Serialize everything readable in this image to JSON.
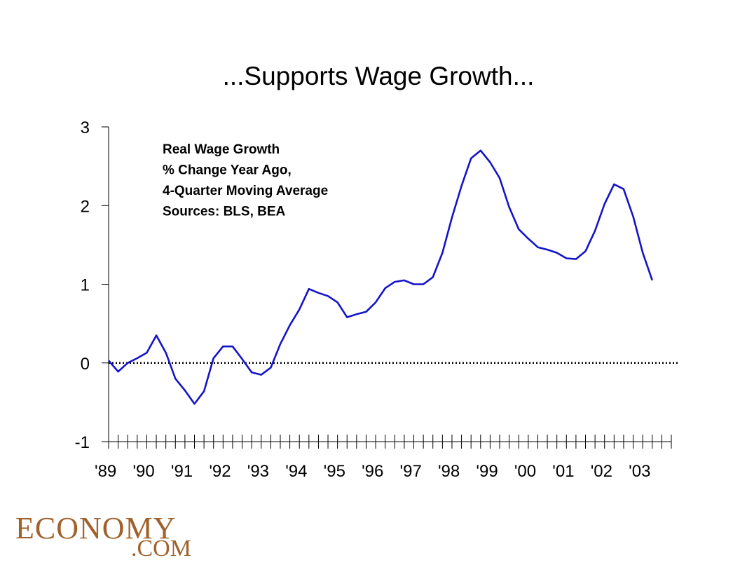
{
  "chart_data": {
    "type": "line",
    "title": "...Supports Wage Growth...",
    "xlabel": "",
    "ylabel": "",
    "ylim": [
      -1,
      3
    ],
    "yticks": [
      3,
      2,
      1,
      0,
      -1
    ],
    "ytick_labels": [
      "3",
      "2",
      "1",
      "0",
      "-1"
    ],
    "xlim": [
      1989,
      2003.75
    ],
    "xtick_labels": [
      "'89",
      "'90",
      "'91",
      "'92",
      "'93",
      "'94",
      "'95",
      "'96",
      "'97",
      "'98",
      "'99",
      "'00",
      "'01",
      "'02",
      "'03"
    ],
    "reference_line": {
      "y": 0,
      "style": "dotted"
    },
    "annotation": [
      "Real Wage Growth",
      "% Change Year Ago,",
      "4-Quarter Moving Average",
      "Sources: BLS, BEA"
    ],
    "series": [
      {
        "color": "#1414c8",
        "x": [
          1989.0,
          1989.25,
          1989.5,
          1989.75,
          1990.0,
          1990.25,
          1990.5,
          1990.75,
          1991.0,
          1991.25,
          1991.5,
          1991.75,
          1992.0,
          1992.25,
          1992.5,
          1992.75,
          1993.0,
          1993.25,
          1993.5,
          1993.75,
          1994.0,
          1994.25,
          1994.5,
          1994.75,
          1995.0,
          1995.25,
          1995.5,
          1995.75,
          1996.0,
          1996.25,
          1996.5,
          1996.75,
          1997.0,
          1997.25,
          1997.5,
          1997.75,
          1998.0,
          1998.25,
          1998.5,
          1998.75,
          1999.0,
          1999.25,
          1999.5,
          1999.75,
          2000.0,
          2000.25,
          2000.5,
          2000.75,
          2001.0,
          2001.25,
          2001.5,
          2001.75,
          2002.0,
          2002.25,
          2002.5,
          2002.75,
          2003.0,
          2003.25
        ],
        "values": [
          0.03,
          -0.11,
          0.0,
          0.06,
          0.13,
          0.35,
          0.13,
          -0.2,
          -0.35,
          -0.52,
          -0.36,
          0.06,
          0.21,
          0.21,
          0.05,
          -0.12,
          -0.15,
          -0.06,
          0.24,
          0.48,
          0.68,
          0.94,
          0.89,
          0.85,
          0.77,
          0.58,
          0.62,
          0.65,
          0.77,
          0.95,
          1.03,
          1.05,
          1.0,
          1.0,
          1.09,
          1.4,
          1.85,
          2.25,
          2.6,
          2.7,
          2.55,
          2.35,
          1.98,
          1.7,
          1.58,
          1.47,
          1.44,
          1.4,
          1.33,
          1.32,
          1.42,
          1.68,
          2.02,
          2.27,
          2.21,
          1.86,
          1.4,
          1.05
        ]
      }
    ]
  },
  "logo": {
    "text_main": "ECONOMY",
    "text_sub": ".COM"
  }
}
